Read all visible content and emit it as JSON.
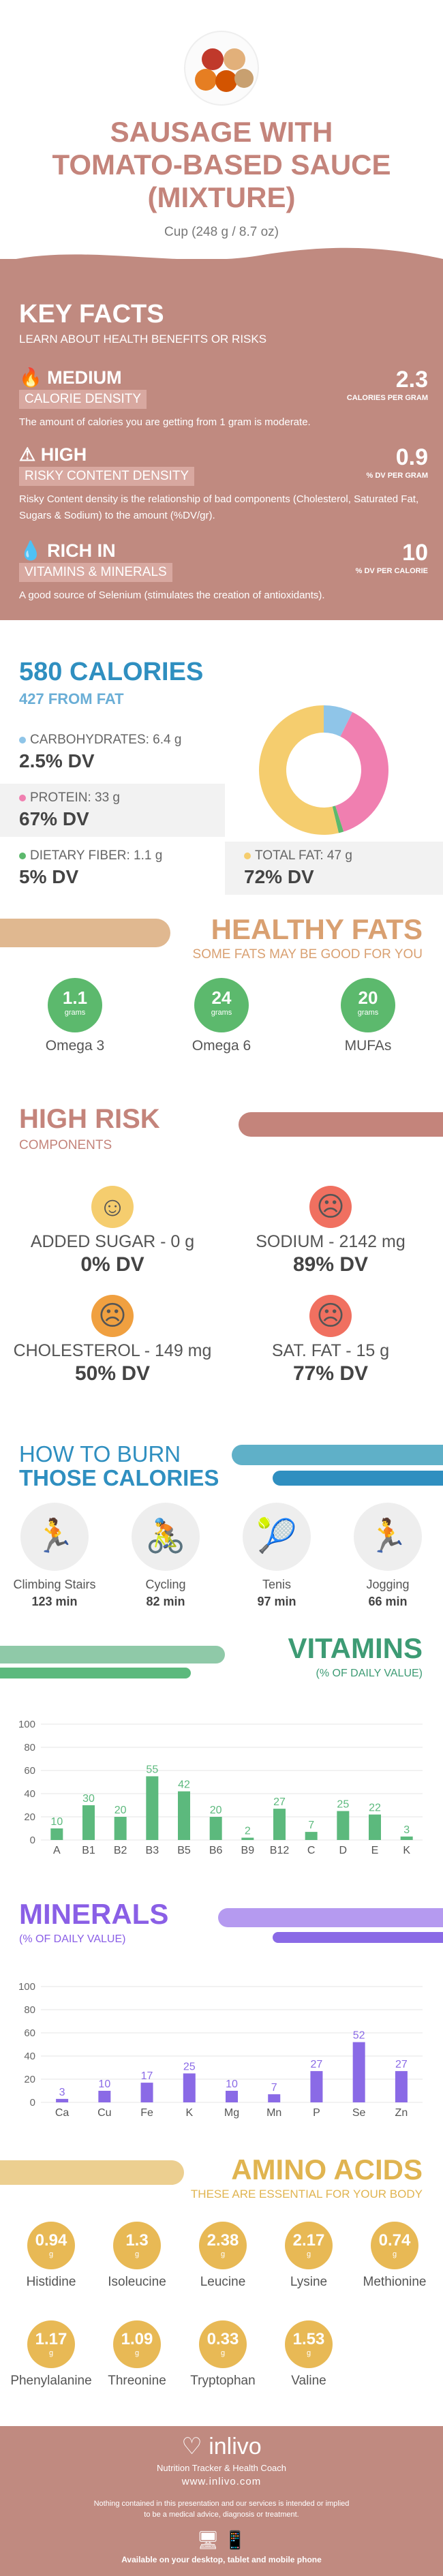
{
  "header": {
    "title_line1": "SAUSAGE WITH",
    "title_line2": "TOMATO-BASED SAUCE",
    "title_line3": "(MIXTURE)",
    "serving": "Cup (248 g / 8.7 oz)"
  },
  "key_facts": {
    "title": "KEY FACTS",
    "subtitle": "LEARN ABOUT HEALTH BENEFITS OR RISKS",
    "items": [
      {
        "level": "MEDIUM",
        "label": "CALORIE DENSITY",
        "desc": "The amount of calories you are getting from 1 gram is moderate.",
        "value": "2.3",
        "unit": "CALORIES PER GRAM"
      },
      {
        "level": "HIGH",
        "label": "RISKY CONTENT DENSITY",
        "desc": "Risky Content density is the relationship of bad components (Cholesterol, Saturated Fat, Sugars & Sodium) to the amount (%DV/gr).",
        "value": "0.9",
        "unit": "% DV PER GRAM"
      },
      {
        "level": "RICH  IN",
        "label": "VITAMINS & MINERALS",
        "desc": "A good source of Selenium (stimulates the creation of antioxidants).",
        "value": "10",
        "unit": "% DV PER CALORIE"
      }
    ]
  },
  "calories": {
    "title": "580 CALORIES",
    "subtitle": "427 FROM FAT",
    "macros": [
      {
        "name": "CARBOHYDRATES: 6.4 g",
        "dv": "2.5% DV",
        "color": "#8fc5e8"
      },
      {
        "name": "PROTEIN: 33 g",
        "dv": "67% DV",
        "color": "#f07fb0"
      },
      {
        "name": "DIETARY FIBER: 1.1 g",
        "dv": "5% DV",
        "color": "#5cb96d"
      },
      {
        "name": "TOTAL FAT: 47 g",
        "dv": "72% DV",
        "color": "#f5cd6e"
      }
    ],
    "donut": [
      {
        "name": "Carbohydrates",
        "value": 6.4,
        "color": "#8fc5e8"
      },
      {
        "name": "Protein",
        "value": 33,
        "color": "#f07fb0"
      },
      {
        "name": "Fiber",
        "value": 1.1,
        "color": "#5cb96d"
      },
      {
        "name": "Fat",
        "value": 47,
        "color": "#f5cd6e"
      }
    ]
  },
  "healthy_fats": {
    "title": "HEALTHY FATS",
    "subtitle": "SOME FATS MAY BE GOOD FOR YOU",
    "items": [
      {
        "value": "1.1",
        "unit": "grams",
        "name": "Omega 3"
      },
      {
        "value": "24",
        "unit": "grams",
        "name": "Omega 6"
      },
      {
        "value": "20",
        "unit": "grams",
        "name": "MUFAs"
      }
    ]
  },
  "high_risk": {
    "title": "HIGH RISK",
    "subtitle": "COMPONENTS",
    "items": [
      {
        "name": "ADDED SUGAR - 0 g",
        "dv": "0% DV",
        "face": "☺",
        "color": "#f5cd6e"
      },
      {
        "name": "SODIUM - 2142 mg",
        "dv": "89% DV",
        "face": "☹",
        "color": "#f07060"
      },
      {
        "name": "CHOLESTEROL - 149 mg",
        "dv": "50% DV",
        "face": "☹",
        "color": "#f0a040"
      },
      {
        "name": "SAT. FAT - 15 g",
        "dv": "77% DV",
        "face": "☹",
        "color": "#f07060"
      }
    ]
  },
  "burn": {
    "title1": "HOW TO BURN",
    "title2": "THOSE CALORIES",
    "items": [
      {
        "name": "Climbing Stairs",
        "minutes": "123 min",
        "icon": "stairs-icon",
        "glyph": "🏃"
      },
      {
        "name": "Cycling",
        "minutes": "82 min",
        "icon": "bicycle-icon",
        "glyph": "🚴"
      },
      {
        "name": "Tenis",
        "minutes": "97 min",
        "icon": "tennis-icon",
        "glyph": "🎾"
      },
      {
        "name": "Jogging",
        "minutes": "66 min",
        "icon": "jogging-icon",
        "glyph": "🏃"
      }
    ]
  },
  "vitamins": {
    "title": "VITAMINS",
    "subtitle": "(% OF DAILY VALUE)"
  },
  "minerals": {
    "title": "MINERALS",
    "subtitle": "(% OF DAILY VALUE)"
  },
  "chart_data": [
    {
      "type": "bar",
      "categories": [
        "A",
        "B1",
        "B2",
        "B3",
        "B5",
        "B6",
        "B9",
        "B12",
        "C",
        "D",
        "E",
        "K"
      ],
      "values": [
        10,
        30,
        20,
        55,
        42,
        20,
        2,
        27,
        7,
        25,
        22,
        3
      ],
      "ylim": [
        0,
        100
      ],
      "yticks": [
        0,
        20,
        40,
        60,
        80,
        100
      ],
      "color": "#5cb97d"
    },
    {
      "type": "bar",
      "categories": [
        "Ca",
        "Cu",
        "Fe",
        "K",
        "Mg",
        "Mn",
        "P",
        "Se",
        "Zn"
      ],
      "values": [
        3,
        10,
        17,
        25,
        10,
        7,
        27,
        52,
        27
      ],
      "ylim": [
        0,
        100
      ],
      "yticks": [
        0,
        20,
        40,
        60,
        80,
        100
      ],
      "color": "#8a6ae6"
    }
  ],
  "amino": {
    "title": "AMINO ACIDS",
    "subtitle": "THESE ARE ESSENTIAL FOR YOUR BODY",
    "unit": "g",
    "items": [
      {
        "value": "0.94",
        "name": "Histidine"
      },
      {
        "value": "1.3",
        "name": "Isoleucine"
      },
      {
        "value": "2.38",
        "name": "Leucine"
      },
      {
        "value": "2.17",
        "name": "Lysine"
      },
      {
        "value": "0.74",
        "name": "Methionine"
      },
      {
        "value": "1.17",
        "name": "Phenylalanine"
      },
      {
        "value": "1.09",
        "name": "Threonine"
      },
      {
        "value": "0.33",
        "name": "Tryptophan"
      },
      {
        "value": "1.53",
        "name": "Valine"
      }
    ]
  },
  "footer": {
    "brand": "inlivo",
    "tagline": "Nutrition Tracker & Health Coach",
    "url": "www.inlivo.com",
    "disclaimer": "Nothing contained in this presentation and our services is intended or implied to be a medical advice, diagnosis or treatment.",
    "available": "Available on your desktop, tablet and mobile phone"
  }
}
